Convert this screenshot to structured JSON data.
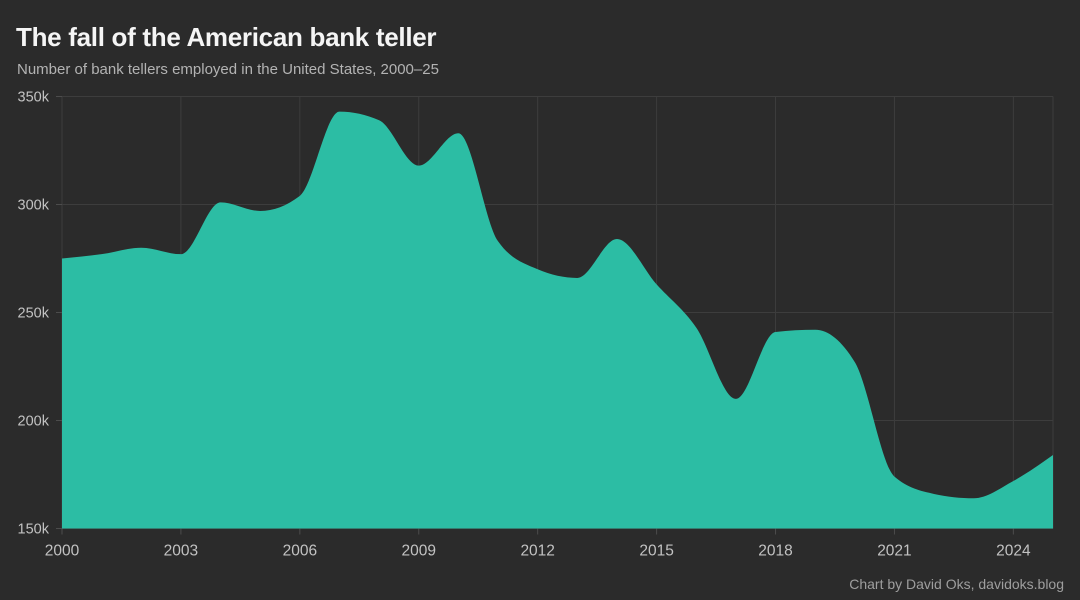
{
  "header": {
    "title": "The fall of the American bank teller",
    "subtitle": "Number of bank tellers employed in the United States, 2000–25"
  },
  "footer": {
    "credit": "Chart by David Oks, davidoks.blog"
  },
  "chart_data": {
    "type": "area",
    "title": "The fall of the American bank teller",
    "subtitle": "Number of bank tellers employed in the United States, 2000–25",
    "xlabel": "",
    "ylabel": "",
    "x": [
      2000,
      2001,
      2002,
      2003,
      2004,
      2005,
      2006,
      2007,
      2008,
      2009,
      2010,
      2011,
      2012,
      2013,
      2014,
      2015,
      2016,
      2017,
      2018,
      2019,
      2020,
      2021,
      2022,
      2023,
      2024,
      2025
    ],
    "values": [
      275000,
      277000,
      280000,
      277000,
      301000,
      297000,
      304000,
      343000,
      339000,
      318000,
      333000,
      283000,
      270000,
      266000,
      284000,
      263000,
      243000,
      210000,
      241000,
      242000,
      227000,
      174000,
      166000,
      164000,
      172000,
      184000
    ],
    "xlim": [
      2000,
      2025
    ],
    "ylim": [
      150000,
      350000
    ],
    "x_ticks": [
      {
        "value": 2000,
        "label": "2000"
      },
      {
        "value": 2003,
        "label": "2003"
      },
      {
        "value": 2006,
        "label": "2006"
      },
      {
        "value": 2009,
        "label": "2009"
      },
      {
        "value": 2012,
        "label": "2012"
      },
      {
        "value": 2015,
        "label": "2015"
      },
      {
        "value": 2018,
        "label": "2018"
      },
      {
        "value": 2021,
        "label": "2021"
      },
      {
        "value": 2024,
        "label": "2024"
      }
    ],
    "y_ticks": [
      {
        "value": 150000,
        "label": "150k"
      },
      {
        "value": 200000,
        "label": "200k"
      },
      {
        "value": 250000,
        "label": "250k"
      },
      {
        "value": 300000,
        "label": "300k"
      },
      {
        "value": 350000,
        "label": "350k"
      }
    ],
    "grid": true,
    "legend": false,
    "interpolation": "monotone",
    "style": {
      "background_color": "#2b2b2b",
      "area_color": "#2cbda4",
      "grid_color": "#3d3d3d",
      "tick_color": "#4c4c4c",
      "label_color": "#c2c2c2",
      "title_color": "#f5f5f5",
      "subtitle_color": "#b3b3b3",
      "credit_color": "#9e9e9e"
    }
  }
}
